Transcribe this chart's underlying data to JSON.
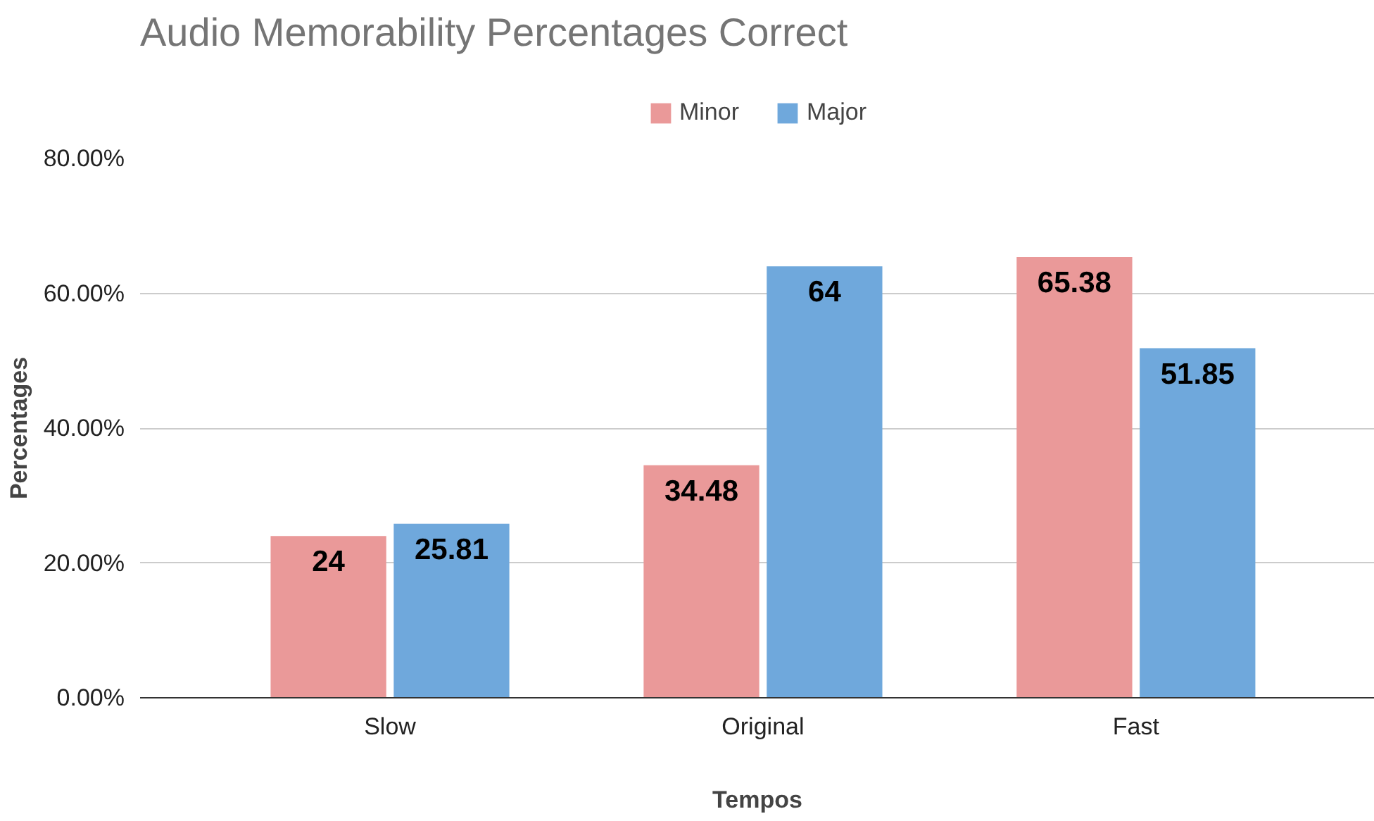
{
  "chart_data": {
    "type": "bar",
    "title": "Audio Memorability Percentages Correct",
    "xlabel": "Tempos",
    "ylabel": "Percentages",
    "categories": [
      "Slow",
      "Original",
      "Fast"
    ],
    "series": [
      {
        "name": "Minor",
        "color": "#ea9999",
        "values": [
          24,
          34.48,
          65.38
        ]
      },
      {
        "name": "Major",
        "color": "#6fa8dc",
        "values": [
          25.81,
          64,
          51.85
        ]
      }
    ],
    "ylim": [
      0,
      80
    ],
    "yticks": [
      {
        "value": 0,
        "label": "0.00%"
      },
      {
        "value": 20,
        "label": "20.00%"
      },
      {
        "value": 40,
        "label": "40.00%"
      },
      {
        "value": 60,
        "label": "60.00%"
      },
      {
        "value": 80,
        "label": "80.00%"
      }
    ],
    "grid": "y",
    "legend": "top",
    "data_labels": true
  }
}
